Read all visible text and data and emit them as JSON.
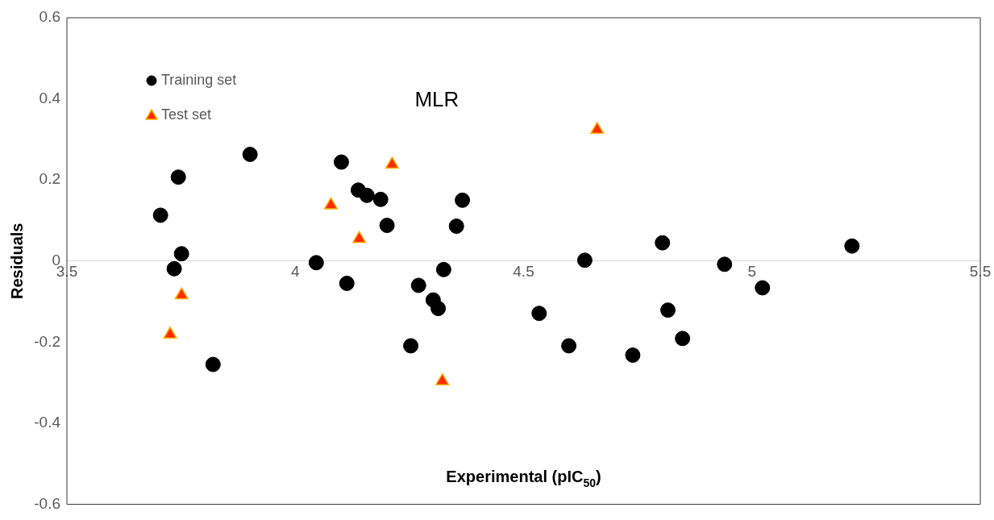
{
  "chart_data": {
    "type": "scatter",
    "title": "MLR",
    "xlabel": "Experimental (pIC$_{50}$)",
    "ylabel": "Residuals",
    "xlim": [
      3.5,
      5.5
    ],
    "xticks": [
      3.5,
      4,
      4.5,
      5,
      5.5
    ],
    "ylim": [
      -0.6,
      0.6
    ],
    "yticks": [
      -0.6,
      -0.4,
      -0.2,
      0,
      0.2,
      0.4,
      0.6
    ],
    "grid": false,
    "legend": "top left",
    "series": [
      {
        "name": "Training set",
        "color": "#000000",
        "marker": "circle",
        "x": [
          3.705,
          3.744,
          3.735,
          3.751,
          3.82,
          3.901,
          4.046,
          4.101,
          4.113,
          4.138,
          4.157,
          4.187,
          4.201,
          4.253,
          4.27,
          4.302,
          4.313,
          4.325,
          4.353,
          4.366,
          4.534,
          4.599,
          4.634,
          4.739,
          4.804,
          4.816,
          4.848,
          4.94,
          5.023,
          5.219
        ],
        "values": [
          0.113,
          0.207,
          -0.019,
          0.018,
          -0.255,
          0.263,
          -0.004,
          0.244,
          -0.055,
          0.175,
          0.162,
          0.152,
          0.088,
          -0.209,
          -0.06,
          -0.096,
          -0.117,
          -0.021,
          0.086,
          0.15,
          -0.129,
          -0.209,
          0.002,
          -0.232,
          0.045,
          -0.121,
          -0.191,
          -0.008,
          -0.066,
          0.037
        ]
      },
      {
        "name": "Test set",
        "color": "#ff2a00",
        "marker": "triangle",
        "x": [
          4.661,
          4.212,
          4.078,
          4.14,
          3.751,
          3.726,
          4.322
        ],
        "values": [
          0.324,
          0.238,
          0.138,
          0.055,
          -0.084,
          -0.181,
          -0.296
        ]
      }
    ]
  }
}
